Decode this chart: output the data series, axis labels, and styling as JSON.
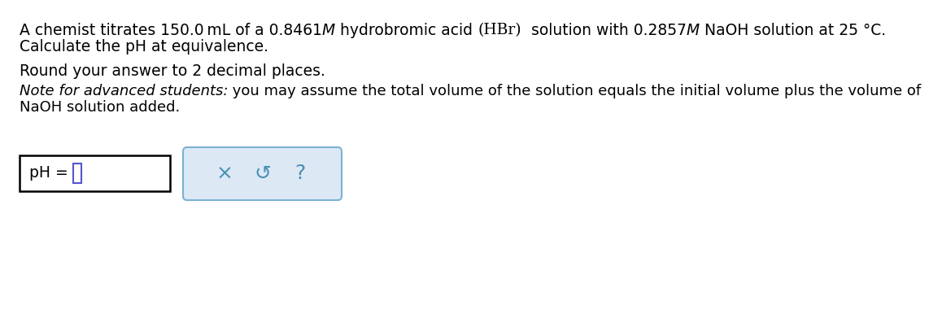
{
  "bg_color": "#ffffff",
  "text_color": "#000000",
  "box_border_color": "#000000",
  "button_bg_color": "#dce9f5",
  "button_border_color": "#7ab3d4",
  "button_symbol_color": "#4a8fb5",
  "input_cursor_color": "#5555cc",
  "font_size_main": 13.5,
  "font_size_note": 13.0,
  "font_size_input": 13.5,
  "font_size_symbols": 18,
  "line1_segments": [
    [
      "A chemist titrates 150.0 mL of a 0.8461",
      "sans",
      "normal"
    ],
    [
      "M",
      "sans",
      "italic"
    ],
    [
      " hydrobromic acid ",
      "sans",
      "normal"
    ],
    [
      "(HBr)",
      "serif",
      "normal"
    ],
    [
      "  solution with 0.2857",
      "sans",
      "normal"
    ],
    [
      "M",
      "sans",
      "italic"
    ],
    [
      " NaOH solution at 25 °C.",
      "sans",
      "normal"
    ]
  ],
  "line2": "Calculate the pH at equivalence.",
  "line3": "Round your answer to 2 decimal places.",
  "note_italic": "Note for advanced students:",
  "note_rest": " you may assume the total volume of the solution equals the initial volume plus the volume of",
  "note_line2": "NaOH solution added.",
  "input_label": "pH = ",
  "symbols": [
    "×",
    "↺",
    "?"
  ]
}
